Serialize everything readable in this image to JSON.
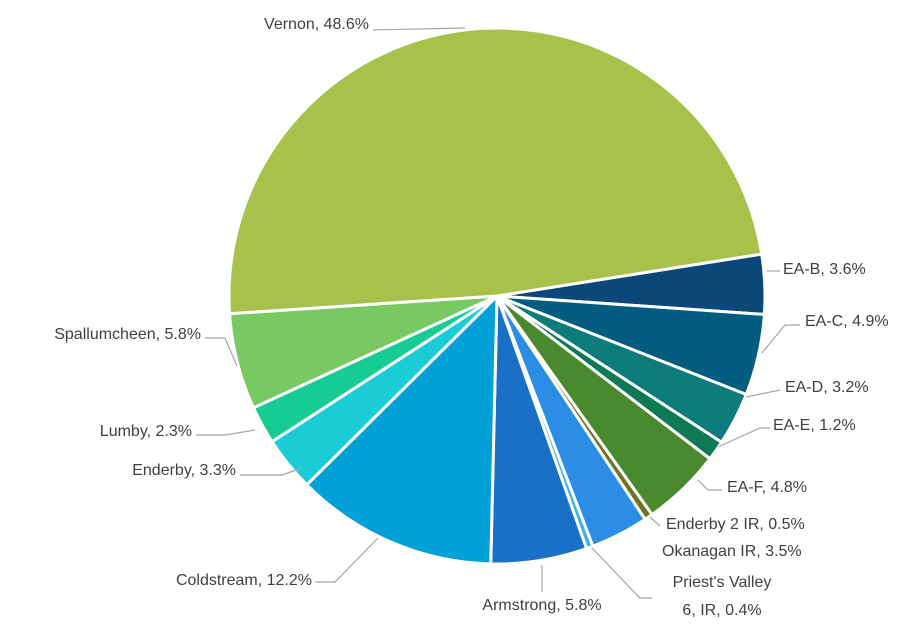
{
  "chart_data": {
    "type": "pie",
    "values": [
      3.6,
      4.9,
      3.2,
      1.2,
      4.8,
      0.5,
      3.5,
      0.4,
      5.8,
      12.2,
      3.3,
      2.3,
      5.8,
      48.6
    ],
    "value_labels": [
      "EA-B, 3.6%",
      "EA-C, 4.9%",
      "EA-D, 3.2%",
      "EA-E, 1.2%",
      "EA-F, 4.8%",
      "Enderby 2 IR, 0.5%",
      "Okanagan IR, 3.5%",
      "Priest's Valley\n6, IR, 0.4%",
      "Armstrong, 5.8%",
      "Coldstream, 12.2%",
      "Enderby, 3.3%",
      "Lumby, 2.3%",
      "Spallumcheen, 5.8%",
      "Vernon, 48.6%"
    ],
    "colors": [
      "#0b4778",
      "#025c80",
      "#0b7b7c",
      "#0d7a55",
      "#4a8a2f",
      "#6b7625",
      "#2b8de6",
      "#3cb2e8",
      "#1a6fc6",
      "#01a0d6",
      "#19ccd6",
      "#17cc92",
      "#79c962",
      "#a7c14a"
    ]
  }
}
